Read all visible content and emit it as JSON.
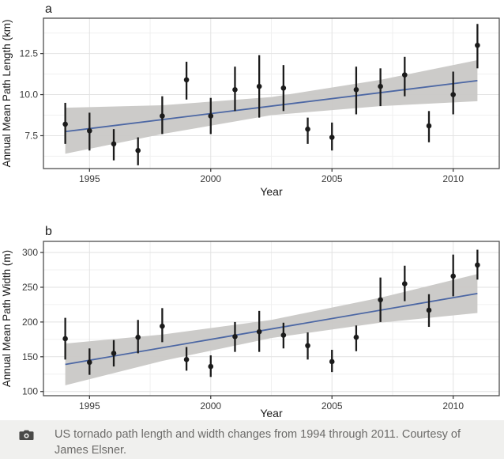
{
  "theme": {
    "page_background": "#ffffff",
    "panel_background": "#ffffff",
    "panel_border": "#4e4e4e",
    "grid_major": "#e2e2e2",
    "grid_minor": "#f0f0f0",
    "confidence_band": "#c9c8c6",
    "trend_line": "#4c67a4",
    "point": "#1b1b1b",
    "tick_mark": "#333333",
    "tick_text": "#3a3a3a",
    "axis_label_text": "#1a1a1a"
  },
  "caption": {
    "icon": "camera-icon",
    "text": "US tornado path length and width changes from 1994 through 2011. Courtesy of James Elsner.",
    "background": "#f0f0ee",
    "text_color": "#6c6b69"
  },
  "chart_data": [
    {
      "type": "scatter",
      "panel_label": "a",
      "xlabel": "Year",
      "ylabel": "Annual Mean Path Length (km)",
      "xlim": [
        1993.1,
        2011.9
      ],
      "ylim": [
        5.5,
        14.65
      ],
      "x_ticks": [
        1995,
        2000,
        2005,
        2010
      ],
      "x_tick_labels": [
        "1995",
        "2000",
        "2005",
        "2010"
      ],
      "x_minor_ticks": [
        1997.5,
        2002.5,
        2007.5
      ],
      "y_ticks": [
        7.5,
        10.0,
        12.5
      ],
      "y_tick_labels": [
        "7.5",
        "10.0",
        "12.5"
      ],
      "y_minor_ticks": [
        6.25,
        8.75,
        11.25,
        13.75
      ],
      "grid": true,
      "legend": "none",
      "series": {
        "name": "annual-mean-path-length",
        "years": [
          1994,
          1995,
          1996,
          1997,
          1998,
          1999,
          2000,
          2001,
          2002,
          2003,
          2004,
          2005,
          2006,
          2007,
          2008,
          2009,
          2010,
          2011
        ],
        "mean": [
          8.2,
          7.8,
          7.0,
          6.6,
          8.7,
          10.9,
          8.7,
          10.3,
          10.5,
          10.4,
          7.9,
          7.4,
          10.3,
          10.5,
          11.2,
          8.1,
          10.0,
          13.0
        ],
        "lower": [
          7.0,
          6.6,
          6.0,
          5.7,
          7.6,
          9.7,
          7.6,
          9.0,
          8.6,
          9.0,
          7.0,
          6.6,
          8.8,
          9.3,
          9.9,
          7.1,
          8.8,
          11.6
        ],
        "upper": [
          9.5,
          8.9,
          7.9,
          7.4,
          9.9,
          12.0,
          9.8,
          11.7,
          12.4,
          11.8,
          8.6,
          8.3,
          11.7,
          11.6,
          12.3,
          9.0,
          11.4,
          14.3
        ]
      },
      "trend_line": {
        "x": [
          1994,
          2011
        ],
        "y": [
          7.75,
          10.85
        ]
      },
      "confidence_band": {
        "x": [
          1994,
          1998,
          2002.5,
          2007,
          2011
        ],
        "upper": [
          9.2,
          9.35,
          9.85,
          10.9,
          12.1
        ],
        "lower": [
          6.4,
          7.6,
          8.75,
          9.3,
          9.6
        ]
      }
    },
    {
      "type": "scatter",
      "panel_label": "b",
      "xlabel": "Year",
      "ylabel": "Annual Mean Path Width (m)",
      "xlim": [
        1993.1,
        2011.9
      ],
      "ylim": [
        94,
        316
      ],
      "x_ticks": [
        1995,
        2000,
        2005,
        2010
      ],
      "x_tick_labels": [
        "1995",
        "2000",
        "2005",
        "2010"
      ],
      "x_minor_ticks": [
        1997.5,
        2002.5,
        2007.5
      ],
      "y_ticks": [
        100,
        150,
        200,
        250,
        300
      ],
      "y_tick_labels": [
        "100",
        "150",
        "200",
        "250",
        "300"
      ],
      "y_minor_ticks": [
        125,
        175,
        225,
        275
      ],
      "grid": true,
      "legend": "none",
      "series": {
        "name": "annual-mean-path-width",
        "years": [
          1994,
          1995,
          1996,
          1997,
          1998,
          1999,
          2000,
          2001,
          2002,
          2003,
          2004,
          2005,
          2006,
          2007,
          2008,
          2009,
          2010,
          2011
        ],
        "mean": [
          176,
          142,
          155,
          178,
          194,
          146,
          136,
          179,
          186,
          181,
          166,
          143,
          178,
          232,
          255,
          217,
          266,
          282
        ],
        "lower": [
          146,
          124,
          136,
          155,
          171,
          130,
          121,
          157,
          157,
          162,
          146,
          128,
          158,
          200,
          230,
          193,
          237,
          261
        ],
        "upper": [
          206,
          162,
          174,
          203,
          220,
          164,
          152,
          200,
          216,
          199,
          185,
          160,
          195,
          264,
          281,
          240,
          297,
          304
        ]
      },
      "trend_line": {
        "x": [
          1994,
          2011
        ],
        "y": [
          139,
          241
        ]
      },
      "confidence_band": {
        "x": [
          1994,
          1998,
          2002.5,
          2007,
          2011
        ],
        "upper": [
          169,
          182,
          203,
          235,
          269
        ],
        "lower": [
          109,
          144,
          177,
          199,
          213
        ]
      }
    }
  ]
}
